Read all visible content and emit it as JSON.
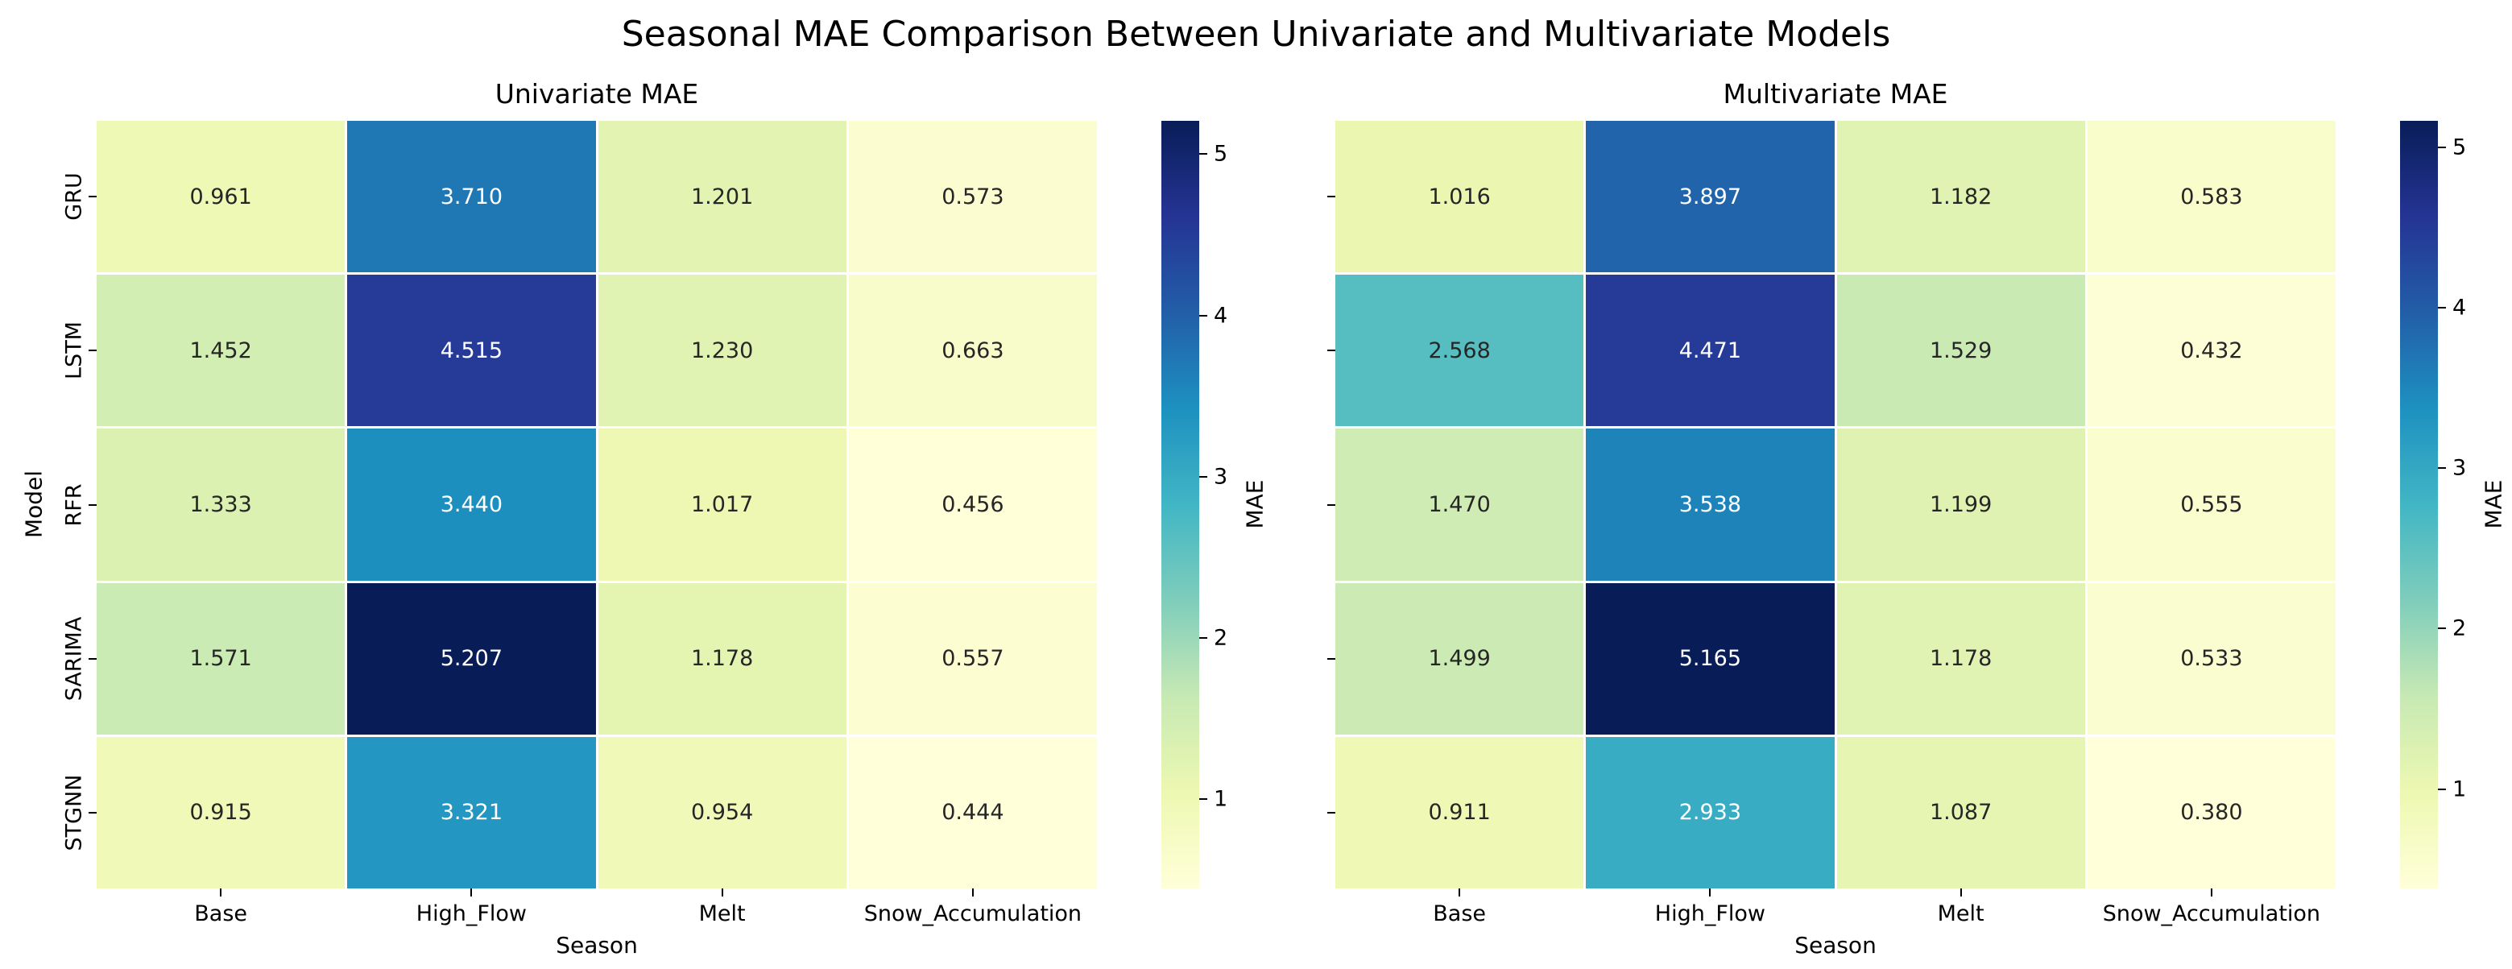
{
  "figure": {
    "title": "Seasonal MAE Comparison Between Univariate and Multivariate Models",
    "background_color": "#ffffff",
    "text_color": "#000000"
  },
  "colormap": {
    "name": "YlGnBu",
    "stops": [
      "#ffffd9",
      "#edf8b1",
      "#c7e9b4",
      "#7fcdbb",
      "#41b6c4",
      "#1d91c0",
      "#225ea8",
      "#253494",
      "#081d58"
    ],
    "cell_gap_color": "#ffffff",
    "annotation_dark_text": "#262626",
    "annotation_light_text": "#ffffff"
  },
  "chart_data": [
    {
      "type": "heatmap",
      "title": "Univariate MAE",
      "xlabel": "Season",
      "ylabel": "Model",
      "colorbar_label": "MAE",
      "colorbar_ticks": [
        1,
        2,
        3,
        4,
        5
      ],
      "x_categories": [
        "Base",
        "High_Flow",
        "Melt",
        "Snow_Accumulation"
      ],
      "y_categories": [
        "GRU",
        "LSTM",
        "RFR",
        "SARIMA",
        "STGNN"
      ],
      "y_tick_labels_visible": true,
      "values": [
        [
          0.961,
          3.71,
          1.201,
          0.573
        ],
        [
          1.452,
          4.515,
          1.23,
          0.663
        ],
        [
          1.333,
          3.44,
          1.017,
          0.456
        ],
        [
          1.571,
          5.207,
          1.178,
          0.557
        ],
        [
          0.915,
          3.321,
          0.954,
          0.444
        ]
      ],
      "value_decimals": 3
    },
    {
      "type": "heatmap",
      "title": "Multivariate MAE",
      "xlabel": "Season",
      "ylabel": "",
      "colorbar_label": "MAE",
      "colorbar_ticks": [
        1,
        2,
        3,
        4,
        5
      ],
      "x_categories": [
        "Base",
        "High_Flow",
        "Melt",
        "Snow_Accumulation"
      ],
      "y_categories": [
        "GRU",
        "LSTM",
        "RFR",
        "SARIMA",
        "STGNN"
      ],
      "y_tick_labels_visible": false,
      "values": [
        [
          1.016,
          3.897,
          1.182,
          0.583
        ],
        [
          2.568,
          4.471,
          1.529,
          0.432
        ],
        [
          1.47,
          3.538,
          1.199,
          0.555
        ],
        [
          1.499,
          5.165,
          1.178,
          0.533
        ],
        [
          0.911,
          2.933,
          1.087,
          0.38
        ]
      ],
      "value_decimals": 3
    }
  ]
}
